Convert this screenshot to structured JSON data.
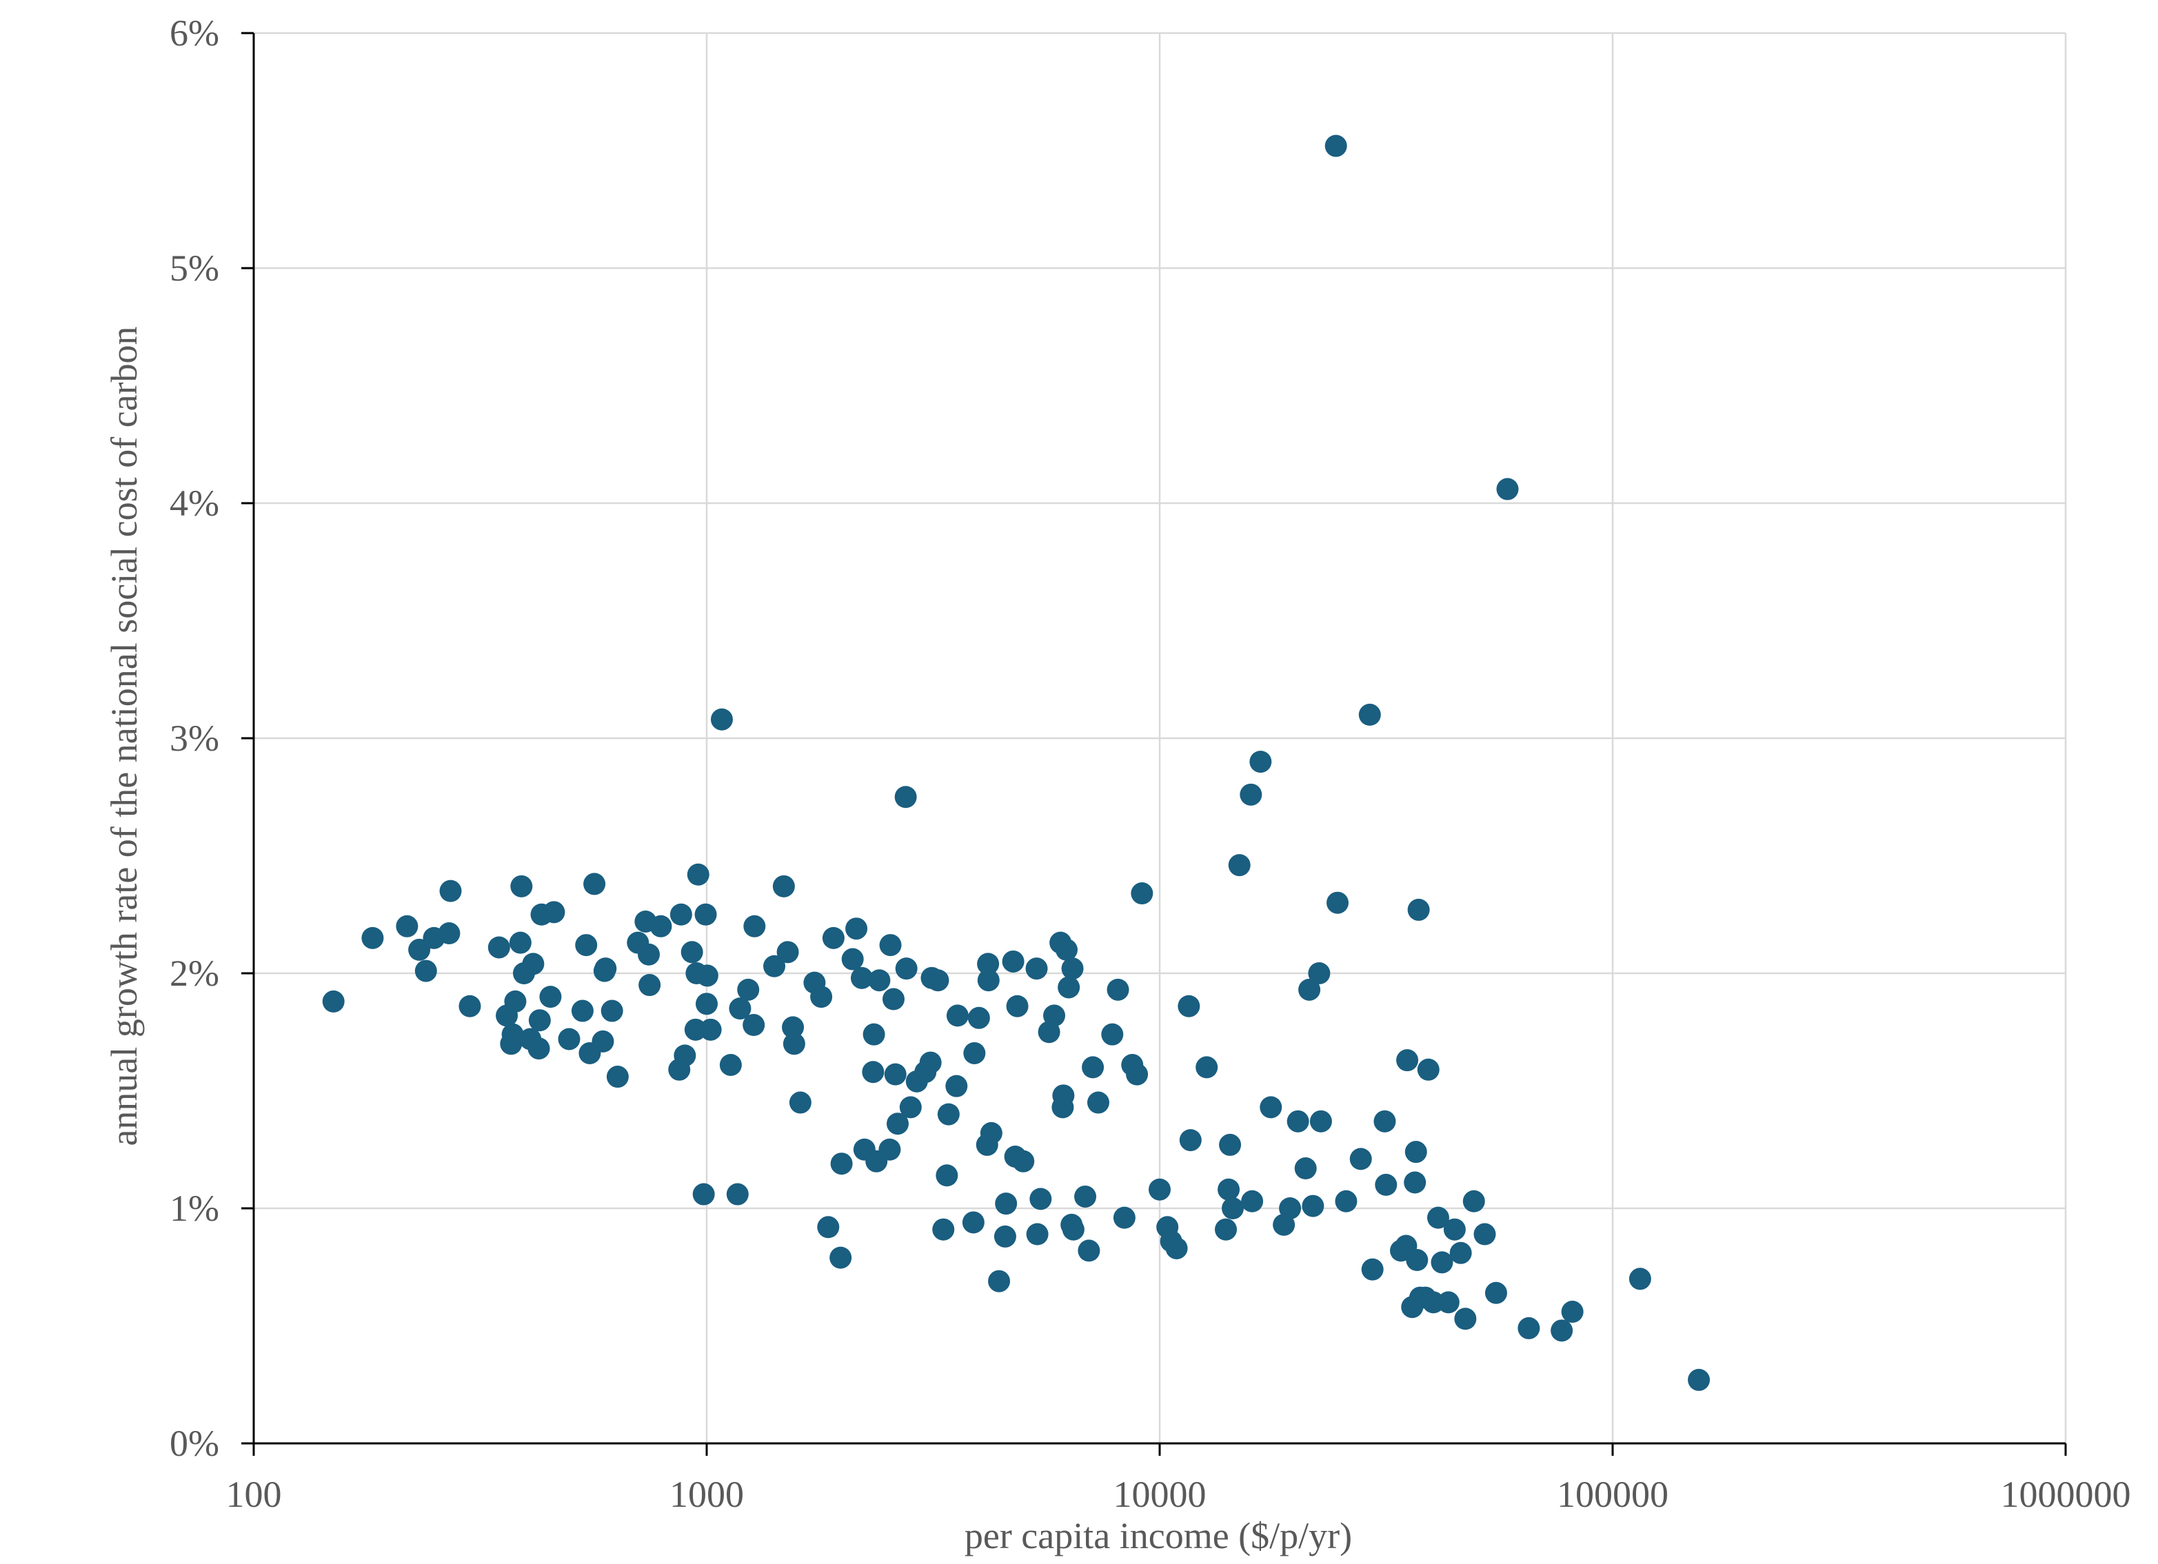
{
  "chart_data": {
    "type": "scatter",
    "xlabel": "per capita income ($/p/yr)",
    "ylabel": "annual growth rate of the national social cost of carbon",
    "x_scale": "log",
    "xlim": [
      100,
      1000000
    ],
    "ylim": [
      0,
      6
    ],
    "x_ticks": [
      100,
      1000,
      10000,
      100000,
      1000000
    ],
    "x_tick_labels": [
      "100",
      "1000",
      "10000",
      "100000",
      "1000000"
    ],
    "y_ticks": [
      0,
      1,
      2,
      3,
      4,
      5,
      6
    ],
    "y_tick_labels": [
      "0%",
      "1%",
      "2%",
      "3%",
      "4%",
      "5%",
      "6%"
    ],
    "grid": true,
    "marker_color": "#1a5e80",
    "points": [
      [
        150,
        1.88
      ],
      [
        183,
        2.15
      ],
      [
        218,
        2.2
      ],
      [
        232,
        2.1
      ],
      [
        240,
        2.01
      ],
      [
        250,
        2.15
      ],
      [
        270,
        2.17
      ],
      [
        272,
        2.35
      ],
      [
        300,
        1.86
      ],
      [
        348,
        2.11
      ],
      [
        362,
        1.82
      ],
      [
        370,
        1.7
      ],
      [
        373,
        1.74
      ],
      [
        378,
        1.88
      ],
      [
        388,
        2.13
      ],
      [
        390,
        2.37
      ],
      [
        395,
        2.0
      ],
      [
        408,
        1.72
      ],
      [
        414,
        2.04
      ],
      [
        426,
        1.68
      ],
      [
        428,
        1.8
      ],
      [
        432,
        2.25
      ],
      [
        452,
        1.9
      ],
      [
        460,
        2.26
      ],
      [
        497,
        1.72
      ],
      [
        532,
        1.84
      ],
      [
        542,
        2.12
      ],
      [
        552,
        1.66
      ],
      [
        565,
        2.38
      ],
      [
        590,
        1.71
      ],
      [
        595,
        2.01
      ],
      [
        598,
        2.02
      ],
      [
        618,
        1.84
      ],
      [
        636,
        1.56
      ],
      [
        705,
        2.13
      ],
      [
        733,
        2.22
      ],
      [
        745,
        2.08
      ],
      [
        748,
        1.95
      ],
      [
        792,
        2.2
      ],
      [
        870,
        1.59
      ],
      [
        878,
        2.25
      ],
      [
        895,
        1.65
      ],
      [
        928,
        2.09
      ],
      [
        945,
        1.76
      ],
      [
        950,
        2.0
      ],
      [
        958,
        2.42
      ],
      [
        985,
        1.06
      ],
      [
        995,
        2.25
      ],
      [
        1000,
        1.87
      ],
      [
        1003,
        1.99
      ],
      [
        1020,
        1.76
      ],
      [
        1080,
        3.08
      ],
      [
        1130,
        1.61
      ],
      [
        1170,
        1.06
      ],
      [
        1185,
        1.85
      ],
      [
        1235,
        1.93
      ],
      [
        1270,
        1.78
      ],
      [
        1275,
        2.2
      ],
      [
        1410,
        2.03
      ],
      [
        1480,
        2.37
      ],
      [
        1510,
        2.09
      ],
      [
        1550,
        1.77
      ],
      [
        1560,
        1.7
      ],
      [
        1610,
        1.45
      ],
      [
        1730,
        1.96
      ],
      [
        1790,
        1.9
      ],
      [
        1855,
        0.92
      ],
      [
        1905,
        2.15
      ],
      [
        1975,
        0.79
      ],
      [
        1985,
        1.19
      ],
      [
        2100,
        2.06
      ],
      [
        2140,
        2.19
      ],
      [
        2200,
        1.98
      ],
      [
        2230,
        1.25
      ],
      [
        2330,
        1.58
      ],
      [
        2340,
        1.74
      ],
      [
        2370,
        1.2
      ],
      [
        2405,
        1.97
      ],
      [
        2535,
        1.25
      ],
      [
        2545,
        2.12
      ],
      [
        2585,
        1.89
      ],
      [
        2610,
        1.57
      ],
      [
        2640,
        1.36
      ],
      [
        2750,
        2.75
      ],
      [
        2760,
        2.02
      ],
      [
        2820,
        1.43
      ],
      [
        2910,
        1.54
      ],
      [
        3040,
        1.58
      ],
      [
        3120,
        1.62
      ],
      [
        3140,
        1.98
      ],
      [
        3240,
        1.97
      ],
      [
        3330,
        0.91
      ],
      [
        3390,
        1.14
      ],
      [
        3420,
        1.4
      ],
      [
        3560,
        1.52
      ],
      [
        3580,
        1.82
      ],
      [
        3880,
        0.94
      ],
      [
        3900,
        1.66
      ],
      [
        3990,
        1.81
      ],
      [
        4160,
        1.27
      ],
      [
        4180,
        2.04
      ],
      [
        4190,
        1.97
      ],
      [
        4250,
        1.32
      ],
      [
        4420,
        0.69
      ],
      [
        4560,
        0.88
      ],
      [
        4580,
        1.02
      ],
      [
        4750,
        2.05
      ],
      [
        4800,
        1.22
      ],
      [
        4850,
        1.86
      ],
      [
        5000,
        1.2
      ],
      [
        5350,
        2.02
      ],
      [
        5370,
        0.89
      ],
      [
        5460,
        1.04
      ],
      [
        5700,
        1.75
      ],
      [
        5850,
        1.82
      ],
      [
        6040,
        2.13
      ],
      [
        6110,
        1.43
      ],
      [
        6130,
        1.48
      ],
      [
        6230,
        2.1
      ],
      [
        6300,
        1.94
      ],
      [
        6390,
        0.93
      ],
      [
        6420,
        2.02
      ],
      [
        6450,
        0.91
      ],
      [
        6850,
        1.05
      ],
      [
        6980,
        0.82
      ],
      [
        7120,
        1.6
      ],
      [
        7320,
        1.45
      ],
      [
        7860,
        1.74
      ],
      [
        8090,
        1.93
      ],
      [
        8360,
        0.96
      ],
      [
        8700,
        1.61
      ],
      [
        8910,
        1.57
      ],
      [
        9140,
        2.34
      ],
      [
        10000,
        1.08
      ],
      [
        10400,
        0.92
      ],
      [
        10600,
        0.86
      ],
      [
        10900,
        0.83
      ],
      [
        11600,
        1.86
      ],
      [
        11700,
        1.29
      ],
      [
        12700,
        1.6
      ],
      [
        14000,
        0.91
      ],
      [
        14200,
        1.08
      ],
      [
        14300,
        1.27
      ],
      [
        14500,
        1.0
      ],
      [
        15000,
        2.46
      ],
      [
        15900,
        2.76
      ],
      [
        16000,
        1.03
      ],
      [
        16700,
        2.9
      ],
      [
        17600,
        1.43
      ],
      [
        18800,
        0.93
      ],
      [
        19400,
        1.0
      ],
      [
        20200,
        1.37
      ],
      [
        21000,
        1.17
      ],
      [
        21400,
        1.93
      ],
      [
        21800,
        1.01
      ],
      [
        22500,
        2.0
      ],
      [
        22700,
        1.37
      ],
      [
        24500,
        5.52
      ],
      [
        24700,
        2.3
      ],
      [
        25800,
        1.03
      ],
      [
        27800,
        1.21
      ],
      [
        29100,
        3.1
      ],
      [
        29500,
        0.74
      ],
      [
        31400,
        1.37
      ],
      [
        31600,
        1.1
      ],
      [
        34100,
        0.82
      ],
      [
        35000,
        0.84
      ],
      [
        35200,
        1.63
      ],
      [
        36100,
        0.58
      ],
      [
        36600,
        1.11
      ],
      [
        36800,
        1.24
      ],
      [
        37000,
        0.78
      ],
      [
        37300,
        2.27
      ],
      [
        37600,
        0.62
      ],
      [
        38600,
        0.62
      ],
      [
        39200,
        1.59
      ],
      [
        40200,
        0.6
      ],
      [
        41200,
        0.96
      ],
      [
        42000,
        0.77
      ],
      [
        43400,
        0.6
      ],
      [
        44800,
        0.91
      ],
      [
        46200,
        0.81
      ],
      [
        47300,
        0.53
      ],
      [
        49400,
        1.03
      ],
      [
        52200,
        0.89
      ],
      [
        55300,
        0.64
      ],
      [
        58600,
        4.06
      ],
      [
        65300,
        0.49
      ],
      [
        77200,
        0.48
      ],
      [
        81500,
        0.56
      ],
      [
        115000,
        0.7
      ],
      [
        155000,
        0.27
      ]
    ]
  }
}
